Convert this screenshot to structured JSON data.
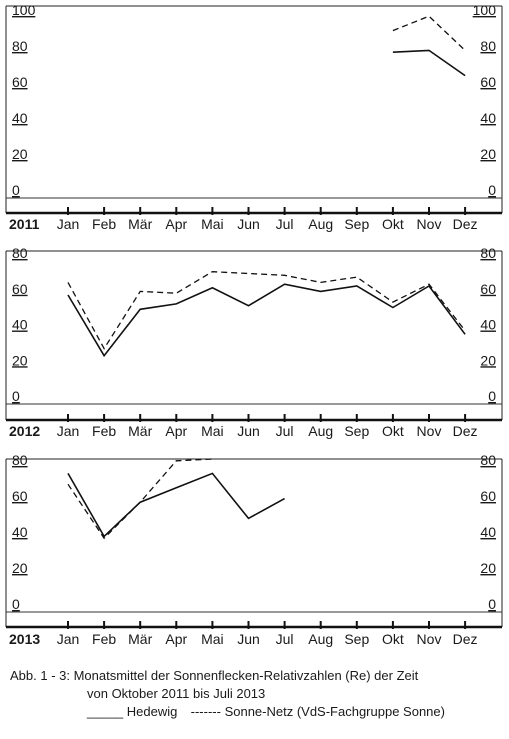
{
  "chart_data": [
    {
      "type": "line",
      "year_label": "2011",
      "categories": [
        "Jan",
        "Feb",
        "Mär",
        "Apr",
        "Mai",
        "Jun",
        "Jul",
        "Aug",
        "Sep",
        "Okt",
        "Nov",
        "Dez"
      ],
      "left_ticks": [
        "0",
        "20",
        "40",
        "60",
        "80",
        "100"
      ],
      "right_ticks": [
        "0",
        "20",
        "40",
        "60",
        "80",
        "100"
      ],
      "ylim": [
        0,
        100
      ],
      "series": [
        {
          "name": "Hedewig",
          "style": "solid",
          "values": [
            null,
            null,
            null,
            null,
            null,
            null,
            null,
            null,
            null,
            81,
            82,
            68
          ]
        },
        {
          "name": "Sonne-Netz (VdS-Fachgruppe Sonne)",
          "style": "dashed",
          "values": [
            null,
            null,
            null,
            null,
            null,
            null,
            null,
            null,
            null,
            93,
            101,
            82
          ]
        }
      ]
    },
    {
      "type": "line",
      "year_label": "2012",
      "categories": [
        "Jan",
        "Feb",
        "Mär",
        "Apr",
        "Mai",
        "Jun",
        "Jul",
        "Aug",
        "Sep",
        "Okt",
        "Nov",
        "Dez"
      ],
      "left_ticks": [
        "0",
        "20",
        "40",
        "60",
        "80"
      ],
      "right_ticks": [
        "0",
        "20",
        "40",
        "60",
        "80"
      ],
      "ylim": [
        0,
        80
      ],
      "series": [
        {
          "name": "Hedewig",
          "style": "solid",
          "values": [
            61,
            27,
            53,
            56,
            65,
            55,
            67,
            63,
            66,
            54,
            66,
            39
          ]
        },
        {
          "name": "Sonne-Netz (VdS-Fachgruppe Sonne)",
          "style": "dashed",
          "values": [
            68,
            31,
            63,
            62,
            74,
            73,
            72,
            68,
            71,
            57,
            67,
            41
          ]
        }
      ]
    },
    {
      "type": "line",
      "year_label": "2013",
      "categories": [
        "Jan",
        "Feb",
        "Mär",
        "Apr",
        "Mai",
        "Jun",
        "Jul",
        "Aug",
        "Sep",
        "Okt",
        "Nov",
        "Dez"
      ],
      "left_ticks": [
        "0",
        "20",
        "40",
        "60",
        "80"
      ],
      "right_ticks": [
        "0",
        "20",
        "40",
        "60",
        "80"
      ],
      "ylim": [
        0,
        80
      ],
      "series": [
        {
          "name": "Hedewig",
          "style": "solid",
          "values": [
            77,
            42,
            61,
            69,
            77,
            52,
            63,
            null,
            null,
            null,
            null,
            null
          ]
        },
        {
          "name": "Sonne-Netz (VdS-Fachgruppe Sonne)",
          "style": "dashed",
          "values": [
            71,
            41,
            61,
            84,
            85,
            null,
            null,
            null,
            null,
            null,
            null,
            null
          ]
        }
      ]
    }
  ],
  "caption": {
    "line1": "Abb. 1 - 3: Monatsmittel der Sonnenflecken-Relativzahlen (Re) der Zeit",
    "line2": "von Oktober 2011 bis Juli 2013",
    "legend_solid_mark": "_____",
    "legend_solid_label": "Hedewig",
    "legend_dashed_mark": "-------",
    "legend_dashed_label": "Sonne-Netz (VdS-Fachgruppe Sonne)"
  }
}
